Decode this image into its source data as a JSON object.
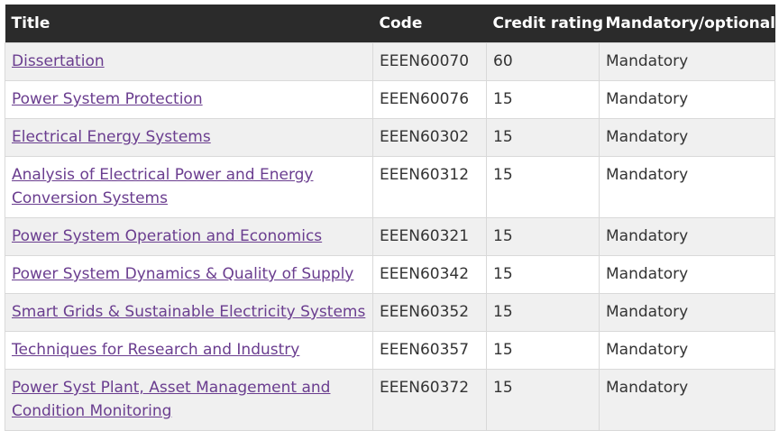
{
  "table": {
    "headers": {
      "title": "Title",
      "code": "Code",
      "credit": "Credit rating",
      "mandatory": "Mandatory/optional"
    },
    "rows": [
      {
        "title": "Dissertation",
        "code": "EEEN60070",
        "credit": "60",
        "mandatory": "Mandatory"
      },
      {
        "title": "Power System Protection",
        "code": "EEEN60076",
        "credit": "15",
        "mandatory": "Mandatory"
      },
      {
        "title": "Electrical Energy Systems",
        "code": "EEEN60302",
        "credit": "15",
        "mandatory": "Mandatory"
      },
      {
        "title": "Analysis of Electrical Power and Energy Conversion Systems",
        "code": "EEEN60312",
        "credit": "15",
        "mandatory": "Mandatory"
      },
      {
        "title": "Power System Operation and Economics",
        "code": "EEEN60321",
        "credit": "15",
        "mandatory": "Mandatory"
      },
      {
        "title": "Power System Dynamics & Quality of Supply",
        "code": "EEEN60342",
        "credit": "15",
        "mandatory": "Mandatory"
      },
      {
        "title": "Smart Grids & Sustainable Electricity Systems",
        "code": "EEEN60352",
        "credit": "15",
        "mandatory": "Mandatory"
      },
      {
        "title": "Techniques for Research and Industry",
        "code": "EEEN60357",
        "credit": "15",
        "mandatory": "Mandatory"
      },
      {
        "title": "Power Syst Plant, Asset Management and Condition Monitoring",
        "code": "EEEN60372",
        "credit": "15",
        "mandatory": "Mandatory"
      }
    ]
  }
}
